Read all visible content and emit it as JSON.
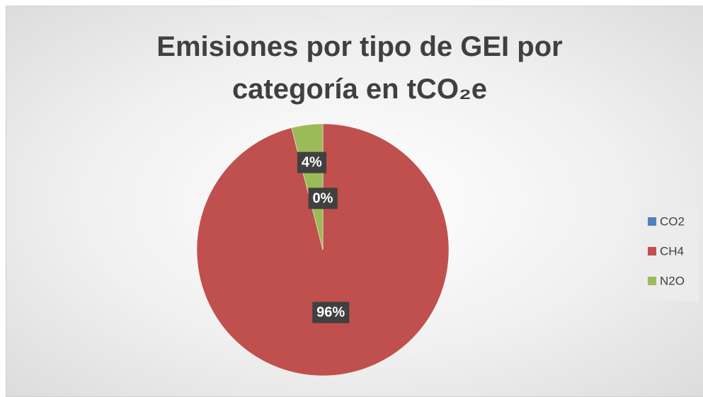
{
  "chart_data": {
    "type": "pie",
    "title": "Emisiones por tipo de GEI por categoría en tCO₂e",
    "categories": [
      "CO2",
      "CH4",
      "N2O"
    ],
    "values": [
      0,
      96,
      4
    ],
    "value_labels": [
      "0%",
      "96%",
      "4%"
    ],
    "colors": [
      "#4f81bd",
      "#c0504d",
      "#9bbb59"
    ],
    "legend": "right"
  }
}
